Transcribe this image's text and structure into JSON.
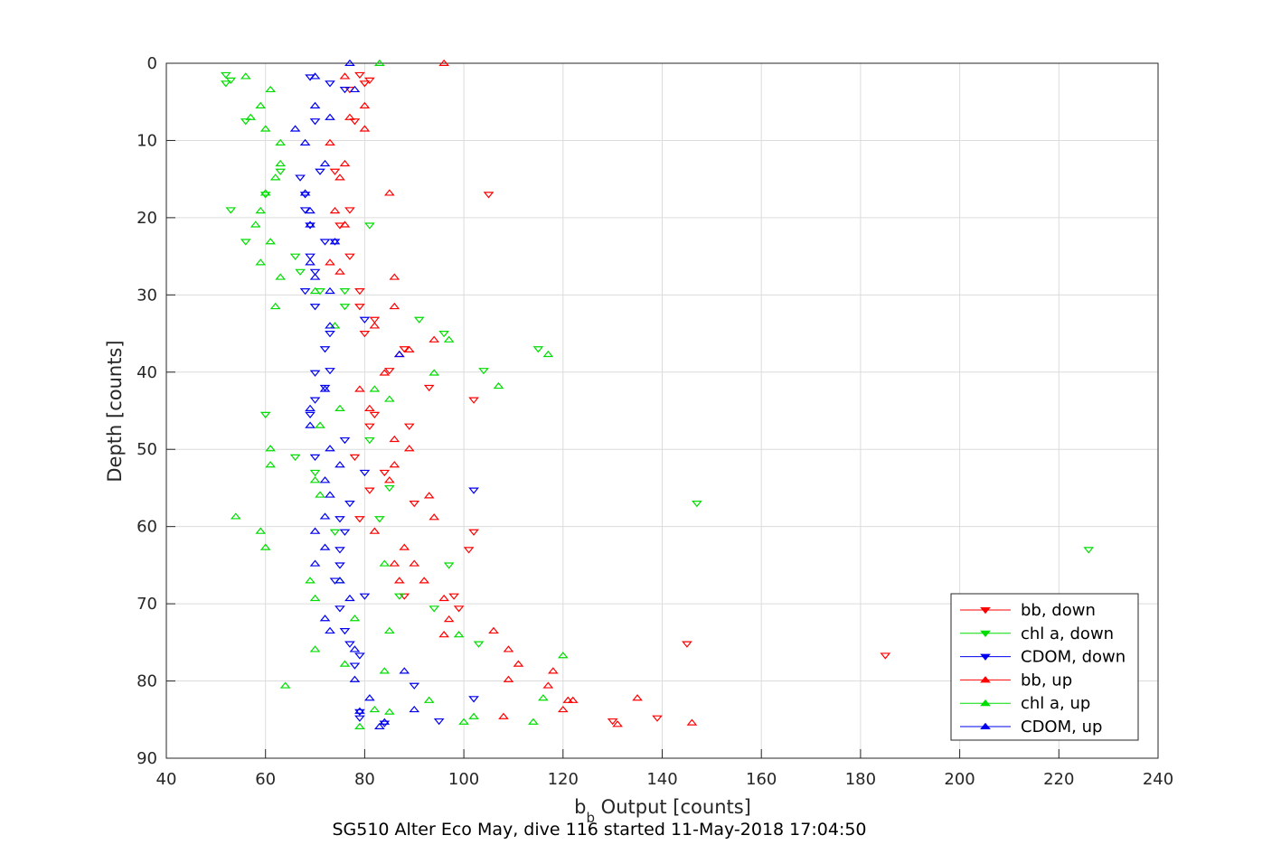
{
  "chart_data": {
    "type": "scatter",
    "xlabel_main": "b",
    "xlabel_sub": "b",
    "xlabel_rest": " Output [counts]",
    "ylabel": "Depth [counts]",
    "subtitle": "SG510 Alter Eco May, dive 116 started 11-May-2018 17:04:50",
    "xlim": [
      40,
      240
    ],
    "ylim": [
      0,
      90
    ],
    "y_reversed": true,
    "grid": true,
    "legend_position": "bottom-right",
    "x_ticks": [
      40,
      60,
      80,
      100,
      120,
      140,
      160,
      180,
      200,
      220,
      240
    ],
    "y_ticks": [
      0,
      10,
      20,
      30,
      40,
      50,
      60,
      70,
      80,
      90
    ],
    "series": [
      {
        "name": "bb, down",
        "color": "#ff0000",
        "marker": "triangle-down",
        "points": [
          [
            79,
            1.5
          ],
          [
            81,
            2.2
          ],
          [
            80,
            2.6
          ],
          [
            77,
            3.4
          ],
          [
            78,
            7.5
          ],
          [
            74,
            14
          ],
          [
            77,
            19
          ],
          [
            75,
            21
          ],
          [
            77,
            25
          ],
          [
            79,
            29.5
          ],
          [
            79,
            31.5
          ],
          [
            82,
            33.2
          ],
          [
            80,
            35
          ],
          [
            85,
            39.8
          ],
          [
            93,
            42
          ],
          [
            102,
            43.6
          ],
          [
            82,
            45.5
          ],
          [
            81,
            47
          ],
          [
            89,
            47
          ],
          [
            78,
            51
          ],
          [
            84,
            53
          ],
          [
            81,
            55.3
          ],
          [
            90,
            57
          ],
          [
            79,
            59
          ],
          [
            102,
            60.7
          ],
          [
            101,
            63
          ],
          [
            88,
            69
          ],
          [
            98,
            69
          ],
          [
            99,
            70.6
          ],
          [
            145,
            75.2
          ],
          [
            185,
            76.7
          ],
          [
            130,
            85.2
          ],
          [
            139,
            84.8
          ],
          [
            88,
            37
          ],
          [
            105,
            17
          ]
        ]
      },
      {
        "name": "chl a, down",
        "color": "#00dd00",
        "marker": "triangle-down",
        "points": [
          [
            52,
            1.5
          ],
          [
            53,
            2.2
          ],
          [
            52,
            2.6
          ],
          [
            56,
            7.5
          ],
          [
            63,
            14
          ],
          [
            60,
            17
          ],
          [
            53,
            19
          ],
          [
            56,
            23.1
          ],
          [
            66,
            25
          ],
          [
            67,
            27
          ],
          [
            71,
            29.5
          ],
          [
            76,
            31.5
          ],
          [
            91,
            33.2
          ],
          [
            96,
            35
          ],
          [
            115,
            37
          ],
          [
            104,
            39.8
          ],
          [
            60,
            45.5
          ],
          [
            81,
            48.8
          ],
          [
            66,
            51
          ],
          [
            70,
            53
          ],
          [
            85,
            55
          ],
          [
            147,
            57
          ],
          [
            83,
            59
          ],
          [
            74,
            60.7
          ],
          [
            226,
            63
          ],
          [
            97,
            65
          ],
          [
            87,
            69
          ],
          [
            94,
            70.6
          ],
          [
            103,
            75.2
          ],
          [
            76,
            29.5
          ],
          [
            81,
            21
          ]
        ]
      },
      {
        "name": "CDOM, down",
        "color": "#0000ee",
        "marker": "triangle-down",
        "points": [
          [
            69,
            1.8
          ],
          [
            73,
            2.6
          ],
          [
            76,
            3.4
          ],
          [
            70,
            7.5
          ],
          [
            71,
            14
          ],
          [
            67,
            14.8
          ],
          [
            68,
            17
          ],
          [
            68,
            19
          ],
          [
            69,
            21
          ],
          [
            72,
            23.1
          ],
          [
            74,
            23.1
          ],
          [
            69,
            25
          ],
          [
            70,
            27
          ],
          [
            68,
            29.5
          ],
          [
            70,
            31.5
          ],
          [
            80,
            33.2
          ],
          [
            73,
            35
          ],
          [
            72,
            37
          ],
          [
            73,
            39.8
          ],
          [
            70,
            40.1
          ],
          [
            72,
            42
          ],
          [
            70,
            43.6
          ],
          [
            69,
            45.5
          ],
          [
            76,
            48.8
          ],
          [
            70,
            51
          ],
          [
            80,
            53
          ],
          [
            102,
            55.3
          ],
          [
            77,
            57
          ],
          [
            75,
            59
          ],
          [
            76,
            60.7
          ],
          [
            75,
            63
          ],
          [
            75,
            65
          ],
          [
            74,
            67
          ],
          [
            80,
            69
          ],
          [
            75,
            70.6
          ],
          [
            76,
            73.5
          ],
          [
            77,
            75.2
          ],
          [
            79,
            76.7
          ],
          [
            78,
            78
          ],
          [
            90,
            80.6
          ],
          [
            79,
            84
          ],
          [
            79,
            84.8
          ],
          [
            95,
            85.2
          ],
          [
            84,
            85.5
          ],
          [
            102,
            82.3
          ]
        ]
      },
      {
        "name": "bb, up",
        "color": "#ff0000",
        "marker": "triangle-up",
        "points": [
          [
            96,
            0
          ],
          [
            76,
            1.7
          ],
          [
            80,
            5.5
          ],
          [
            77,
            7
          ],
          [
            80,
            8.5
          ],
          [
            73,
            10.3
          ],
          [
            76,
            13
          ],
          [
            75,
            14.8
          ],
          [
            85,
            16.8
          ],
          [
            74,
            19.1
          ],
          [
            76,
            20.9
          ],
          [
            73,
            25.8
          ],
          [
            75,
            27
          ],
          [
            86,
            27.7
          ],
          [
            86,
            31.5
          ],
          [
            82,
            34
          ],
          [
            94,
            35.8
          ],
          [
            89,
            37.1
          ],
          [
            87,
            37.7
          ],
          [
            84,
            40.1
          ],
          [
            79,
            42.2
          ],
          [
            81,
            44.7
          ],
          [
            86,
            48.7
          ],
          [
            89,
            49.9
          ],
          [
            86,
            52
          ],
          [
            85,
            54
          ],
          [
            93,
            56
          ],
          [
            94,
            58.8
          ],
          [
            82,
            60.6
          ],
          [
            88,
            62.7
          ],
          [
            86,
            64.8
          ],
          [
            90,
            64.8
          ],
          [
            87,
            67
          ],
          [
            92,
            67
          ],
          [
            96,
            69.3
          ],
          [
            96,
            74
          ],
          [
            97,
            72
          ],
          [
            106,
            73.5
          ],
          [
            109,
            75.9
          ],
          [
            111,
            77.8
          ],
          [
            109,
            79.8
          ],
          [
            117,
            80.6
          ],
          [
            121,
            82.5
          ],
          [
            122,
            82.5
          ],
          [
            135,
            82.2
          ],
          [
            120,
            83.7
          ],
          [
            108,
            84.6
          ],
          [
            131,
            85.6
          ],
          [
            146,
            85.4
          ],
          [
            118,
            78.7
          ]
        ]
      },
      {
        "name": "chl a, up",
        "color": "#00dd00",
        "marker": "triangle-up",
        "points": [
          [
            83,
            0
          ],
          [
            56,
            1.7
          ],
          [
            61,
            3.4
          ],
          [
            59,
            5.5
          ],
          [
            57,
            7
          ],
          [
            60,
            8.5
          ],
          [
            63,
            10.3
          ],
          [
            63,
            13
          ],
          [
            62,
            14.8
          ],
          [
            60,
            16.8
          ],
          [
            59,
            19.1
          ],
          [
            58,
            20.9
          ],
          [
            61,
            23.1
          ],
          [
            59,
            25.8
          ],
          [
            63,
            27.7
          ],
          [
            70,
            29.5
          ],
          [
            62,
            31.5
          ],
          [
            74,
            34
          ],
          [
            97,
            35.8
          ],
          [
            117,
            37.7
          ],
          [
            94,
            40.1
          ],
          [
            107,
            41.8
          ],
          [
            82,
            42.2
          ],
          [
            85,
            43.5
          ],
          [
            75,
            44.7
          ],
          [
            71,
            46.9
          ],
          [
            61,
            49.9
          ],
          [
            61,
            52
          ],
          [
            70,
            54
          ],
          [
            71,
            55.9
          ],
          [
            54,
            58.7
          ],
          [
            59,
            60.6
          ],
          [
            60,
            62.7
          ],
          [
            84,
            64.8
          ],
          [
            69,
            67
          ],
          [
            75,
            67
          ],
          [
            70,
            69.3
          ],
          [
            78,
            71.9
          ],
          [
            85,
            73.5
          ],
          [
            99,
            74
          ],
          [
            70,
            75.9
          ],
          [
            120,
            76.7
          ],
          [
            76,
            77.8
          ],
          [
            84,
            78.7
          ],
          [
            64,
            80.6
          ],
          [
            93,
            82.5
          ],
          [
            116,
            82.2
          ],
          [
            82,
            83.7
          ],
          [
            85,
            84
          ],
          [
            102,
            84.6
          ],
          [
            100,
            85.3
          ],
          [
            114,
            85.3
          ],
          [
            79,
            85.9
          ]
        ]
      },
      {
        "name": "CDOM, up",
        "color": "#0000ee",
        "marker": "triangle-up",
        "points": [
          [
            77,
            0
          ],
          [
            70,
            1.7
          ],
          [
            78,
            3.4
          ],
          [
            70,
            5.5
          ],
          [
            73,
            7
          ],
          [
            66,
            8.5
          ],
          [
            68,
            10.3
          ],
          [
            72,
            13
          ],
          [
            68,
            16.8
          ],
          [
            69,
            19.1
          ],
          [
            69,
            20.9
          ],
          [
            74,
            23.1
          ],
          [
            69,
            25.8
          ],
          [
            70,
            27.7
          ],
          [
            73,
            29.5
          ],
          [
            73,
            34
          ],
          [
            87,
            37.7
          ],
          [
            72,
            42.2
          ],
          [
            69,
            44.7
          ],
          [
            69,
            46.9
          ],
          [
            73,
            49.9
          ],
          [
            75,
            52
          ],
          [
            72,
            54
          ],
          [
            73,
            55.9
          ],
          [
            72,
            58.7
          ],
          [
            70,
            60.6
          ],
          [
            72,
            62.7
          ],
          [
            70,
            64.8
          ],
          [
            75,
            67
          ],
          [
            77,
            69.3
          ],
          [
            72,
            71.9
          ],
          [
            73,
            73.5
          ],
          [
            78,
            75.9
          ],
          [
            78,
            79.8
          ],
          [
            81,
            82.2
          ],
          [
            88,
            78.7
          ],
          [
            79,
            83.9
          ],
          [
            84,
            85.3
          ],
          [
            83,
            85.9
          ],
          [
            90,
            83.7
          ]
        ]
      }
    ]
  }
}
